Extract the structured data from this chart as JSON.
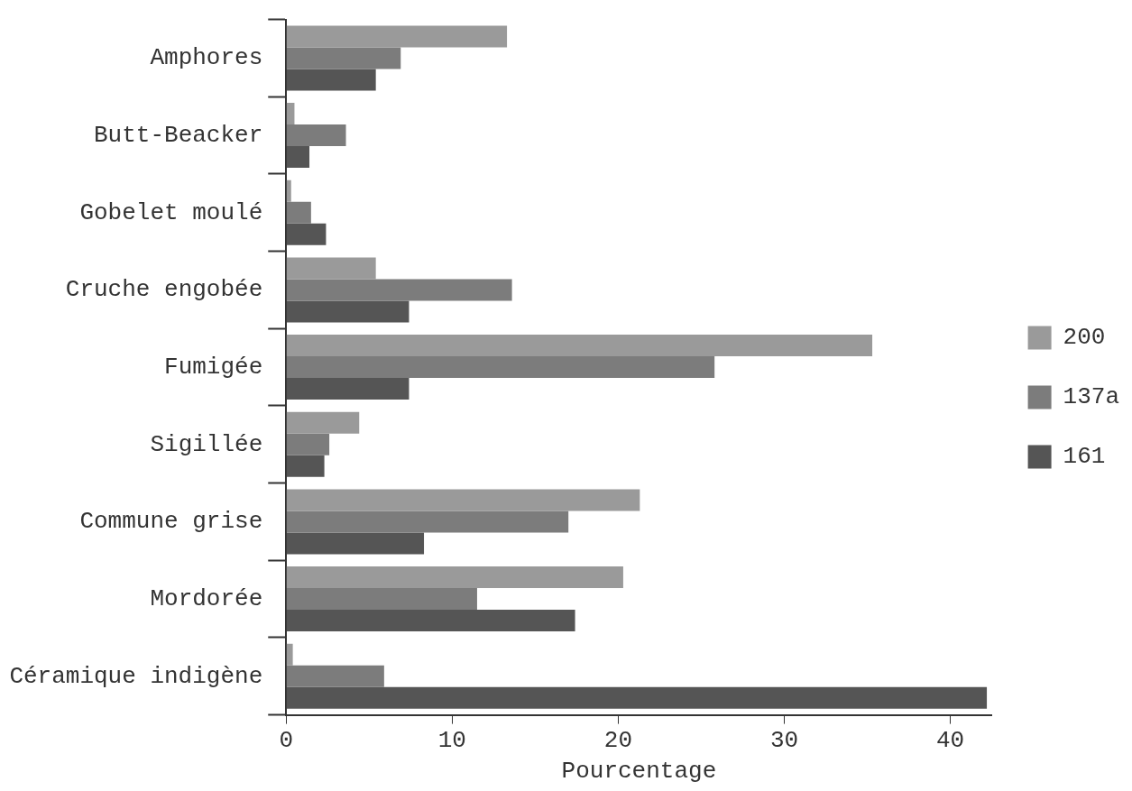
{
  "chart_data": {
    "type": "bar",
    "orientation": "horizontal",
    "xlabel": "Pourcentage",
    "categories": [
      "Amphores",
      "Butt-Beacker",
      "Gobelet moulé",
      "Cruche engobée",
      "Fumigée",
      "Sigillée",
      "Commune grise",
      "Mordorée",
      "Céramique indigène"
    ],
    "series": [
      {
        "name": "200",
        "color": "#9a9a9a",
        "values": [
          13.3,
          0.5,
          0.3,
          5.4,
          35.3,
          4.4,
          21.3,
          20.3,
          0.4
        ]
      },
      {
        "name": "137a",
        "color": "#7c7c7c",
        "values": [
          6.9,
          3.6,
          1.5,
          13.6,
          25.8,
          2.6,
          17.0,
          11.5,
          5.9
        ]
      },
      {
        "name": "161",
        "color": "#555555",
        "values": [
          5.4,
          1.4,
          2.4,
          7.4,
          7.4,
          2.3,
          8.3,
          17.4,
          42.2
        ]
      }
    ],
    "xlim": [
      0,
      42.5
    ],
    "xticks": [
      0,
      10,
      20,
      30,
      40
    ],
    "grid": false,
    "legend": "right"
  }
}
